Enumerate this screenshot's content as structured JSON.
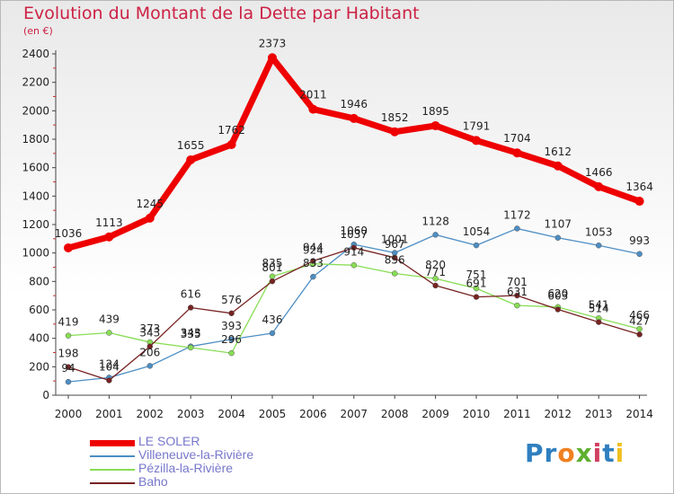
{
  "title": "Evolution du Montant de la Dette par Habitant",
  "unit_label": "(en €)",
  "logo": {
    "letters": [
      "P",
      "r",
      "o",
      "x",
      "i",
      "t",
      "i"
    ],
    "colors": [
      "#2f7fc0",
      "#2f7fc0",
      "#f08020",
      "#5fb030",
      "#d04060",
      "#2f7fc0",
      "#f0c020"
    ]
  },
  "chart_data": {
    "type": "line",
    "title": "Evolution du Montant de la Dette par Habitant",
    "ylabel": "(en €)",
    "xlabel": "",
    "ylim": [
      0,
      2400
    ],
    "yticks": [
      0,
      200,
      400,
      600,
      800,
      1000,
      1200,
      1400,
      1600,
      1800,
      2000,
      2200,
      2400
    ],
    "grid": false,
    "legend": "bottom",
    "categories": [
      "2000",
      "2001",
      "2002",
      "2003",
      "2004",
      "2005",
      "2006",
      "2007",
      "2008",
      "2009",
      "2010",
      "2011",
      "2012",
      "2013",
      "2014"
    ],
    "series": [
      {
        "name": "LE SOLER",
        "color": "#ee0000",
        "values": [
          1036,
          1113,
          1245,
          1655,
          1762,
          2373,
          2011,
          1946,
          1852,
          1895,
          1791,
          1704,
          1612,
          1466,
          1364
        ]
      },
      {
        "name": "Villeneuve-la-Rivière",
        "color": "#4d8ec4",
        "values": [
          94,
          124,
          206,
          343,
          393,
          436,
          833,
          1060,
          1001,
          1128,
          1054,
          1172,
          1107,
          1053,
          993
        ]
      },
      {
        "name": "Pézilla-la-Rivière",
        "color": "#88dd55",
        "values": [
          419,
          439,
          373,
          335,
          296,
          835,
          924,
          914,
          856,
          820,
          751,
          631,
          620,
          541,
          466
        ]
      },
      {
        "name": "Baho",
        "color": "#772222",
        "values": [
          198,
          104,
          343,
          616,
          576,
          801,
          944,
          1037,
          967,
          771,
          691,
          701,
          603,
          514,
          427
        ]
      }
    ]
  }
}
